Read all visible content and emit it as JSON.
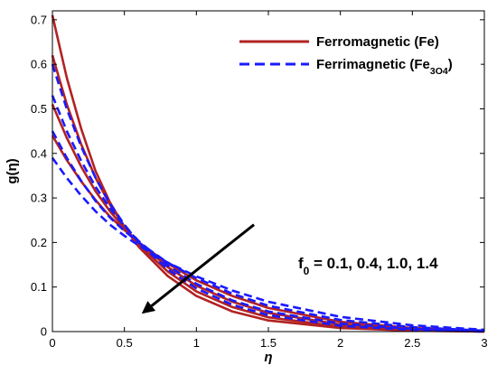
{
  "chart_data": {
    "type": "line",
    "xlabel": "η",
    "ylabel": "g(η)",
    "xlim": [
      0,
      3
    ],
    "ylim": [
      0,
      0.72
    ],
    "xticks": [
      "0",
      "0.5",
      "1",
      "1.5",
      "2",
      "2.5",
      "3"
    ],
    "yticks": [
      "0",
      "0.1",
      "0.2",
      "0.3",
      "0.4",
      "0.5",
      "0.6",
      "0.7"
    ],
    "legend_position": "top-right",
    "legend": [
      {
        "label": "Ferromagnetic (Fe)",
        "style": "solid",
        "color": "#b22222"
      },
      {
        "label": "Ferrimagnetic (Fe3O4)",
        "style": "dashed",
        "color": "#1a1aff"
      }
    ],
    "annotation": {
      "text": "f0 = 0.1, 0.4, 1.0, 1.4",
      "arrow_from": [
        1.4,
        0.24
      ],
      "arrow_to": [
        0.62,
        0.04
      ]
    },
    "series": [
      {
        "name": "Ferromagnetic (Fe)",
        "color": "#b22222",
        "style": "solid",
        "x": [
          0,
          0.1,
          0.2,
          0.3,
          0.4,
          0.5,
          0.6,
          0.8,
          1.0,
          1.25,
          1.5,
          2.0,
          2.5,
          3.0
        ],
        "y": [
          0.71,
          0.57,
          0.455,
          0.36,
          0.29,
          0.235,
          0.19,
          0.125,
          0.08,
          0.045,
          0.025,
          0.008,
          0.002,
          0.0
        ]
      },
      {
        "name": "Ferromagnetic (Fe)",
        "color": "#b22222",
        "style": "solid",
        "x": [
          0,
          0.1,
          0.2,
          0.3,
          0.4,
          0.5,
          0.6,
          0.8,
          1.0,
          1.25,
          1.5,
          2.0,
          2.5,
          3.0
        ],
        "y": [
          0.62,
          0.51,
          0.42,
          0.345,
          0.285,
          0.235,
          0.195,
          0.135,
          0.09,
          0.055,
          0.032,
          0.011,
          0.003,
          0.0
        ]
      },
      {
        "name": "Ferromagnetic (Fe)",
        "color": "#b22222",
        "style": "solid",
        "x": [
          0,
          0.1,
          0.2,
          0.3,
          0.4,
          0.5,
          0.6,
          0.8,
          1.0,
          1.25,
          1.5,
          2.0,
          2.5,
          3.0
        ],
        "y": [
          0.51,
          0.435,
          0.37,
          0.315,
          0.27,
          0.232,
          0.2,
          0.145,
          0.103,
          0.067,
          0.042,
          0.016,
          0.005,
          0.0
        ]
      },
      {
        "name": "Ferromagnetic (Fe)",
        "color": "#b22222",
        "style": "solid",
        "x": [
          0,
          0.1,
          0.2,
          0.3,
          0.4,
          0.5,
          0.6,
          0.8,
          1.0,
          1.25,
          1.5,
          2.0,
          2.5,
          3.0
        ],
        "y": [
          0.44,
          0.385,
          0.337,
          0.295,
          0.258,
          0.228,
          0.2,
          0.153,
          0.115,
          0.08,
          0.053,
          0.022,
          0.008,
          0.002
        ]
      },
      {
        "name": "Ferrimagnetic (Fe3O4)",
        "color": "#1a1aff",
        "style": "dashed",
        "x": [
          0,
          0.1,
          0.2,
          0.3,
          0.4,
          0.5,
          0.6,
          0.8,
          1.0,
          1.25,
          1.5,
          2.0,
          2.5,
          3.0
        ],
        "y": [
          0.6,
          0.5,
          0.415,
          0.345,
          0.287,
          0.24,
          0.2,
          0.14,
          0.097,
          0.06,
          0.037,
          0.013,
          0.004,
          0.0
        ]
      },
      {
        "name": "Ferrimagnetic (Fe3O4)",
        "color": "#1a1aff",
        "style": "dashed",
        "x": [
          0,
          0.1,
          0.2,
          0.3,
          0.4,
          0.5,
          0.6,
          0.8,
          1.0,
          1.25,
          1.5,
          2.0,
          2.5,
          3.0
        ],
        "y": [
          0.53,
          0.45,
          0.383,
          0.325,
          0.277,
          0.237,
          0.203,
          0.148,
          0.107,
          0.07,
          0.045,
          0.018,
          0.006,
          0.001
        ]
      },
      {
        "name": "Ferrimagnetic (Fe3O4)",
        "color": "#1a1aff",
        "style": "dashed",
        "x": [
          0,
          0.1,
          0.2,
          0.3,
          0.4,
          0.5,
          0.6,
          0.8,
          1.0,
          1.25,
          1.5,
          2.0,
          2.5,
          3.0
        ],
        "y": [
          0.45,
          0.39,
          0.338,
          0.293,
          0.256,
          0.226,
          0.2,
          0.155,
          0.12,
          0.085,
          0.058,
          0.026,
          0.01,
          0.002
        ]
      },
      {
        "name": "Ferrimagnetic (Fe3O4)",
        "color": "#1a1aff",
        "style": "dashed",
        "x": [
          0,
          0.1,
          0.2,
          0.3,
          0.4,
          0.5,
          0.6,
          0.8,
          1.0,
          1.25,
          1.5,
          2.0,
          2.5,
          3.0
        ],
        "y": [
          0.39,
          0.345,
          0.305,
          0.27,
          0.24,
          0.215,
          0.193,
          0.155,
          0.124,
          0.092,
          0.067,
          0.033,
          0.014,
          0.004
        ]
      }
    ]
  }
}
